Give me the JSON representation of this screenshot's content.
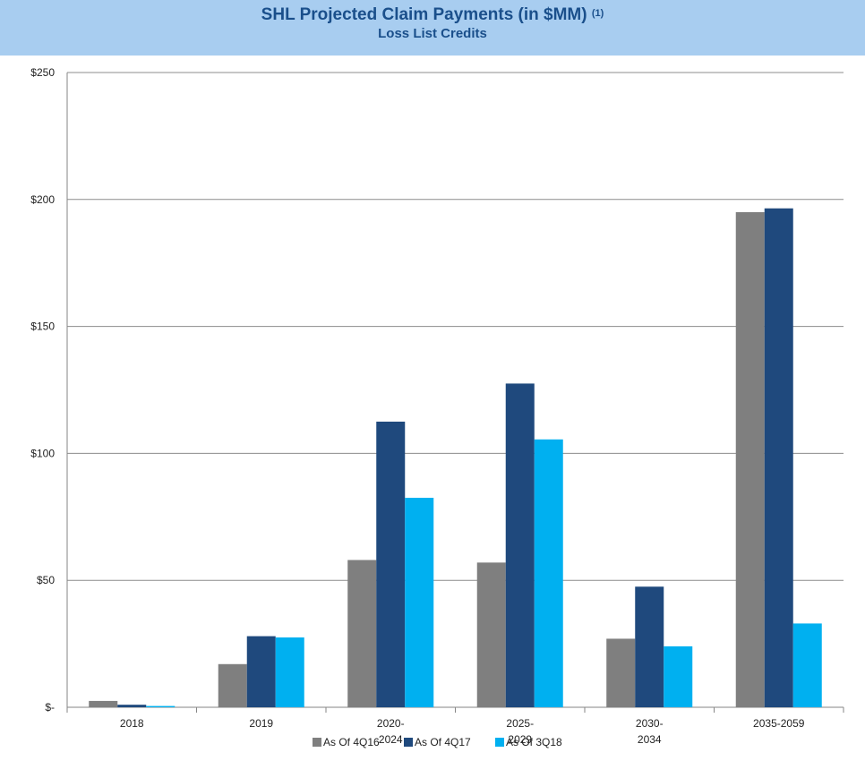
{
  "header": {
    "title": "SHL Projected Claim Payments (in $MM)",
    "footnote_marker": "(1)",
    "subtitle": "Loss List Credits"
  },
  "chart_data": {
    "type": "bar",
    "title": "SHL Projected Claim Payments (in $MM)",
    "subtitle": "Loss List Credits",
    "xlabel": "",
    "ylabel": "",
    "ylim": [
      0,
      250
    ],
    "yticks": [
      0,
      50,
      100,
      150,
      200,
      250
    ],
    "ytick_labels": [
      "$-",
      "$50",
      "$100",
      "$150",
      "$200",
      "$250"
    ],
    "categories": [
      [
        "2018"
      ],
      [
        "2019"
      ],
      [
        "2020-",
        "2024"
      ],
      [
        "2025-",
        "2029"
      ],
      [
        "2030-",
        "2034"
      ],
      [
        "2035-2059"
      ]
    ],
    "series": [
      {
        "name": "As Of 4Q16",
        "color": "#7f7f7f",
        "values": [
          2.5,
          17,
          58,
          57,
          27,
          195
        ]
      },
      {
        "name": "As Of 4Q17",
        "color": "#1f497d",
        "values": [
          1,
          28,
          112.5,
          127.5,
          47.5,
          196.5
        ]
      },
      {
        "name": "As Of 3Q18",
        "color": "#00b0f0",
        "values": [
          0.5,
          27.5,
          82.5,
          105.5,
          24,
          33
        ]
      }
    ],
    "grid": true,
    "legend_position": "bottom"
  }
}
